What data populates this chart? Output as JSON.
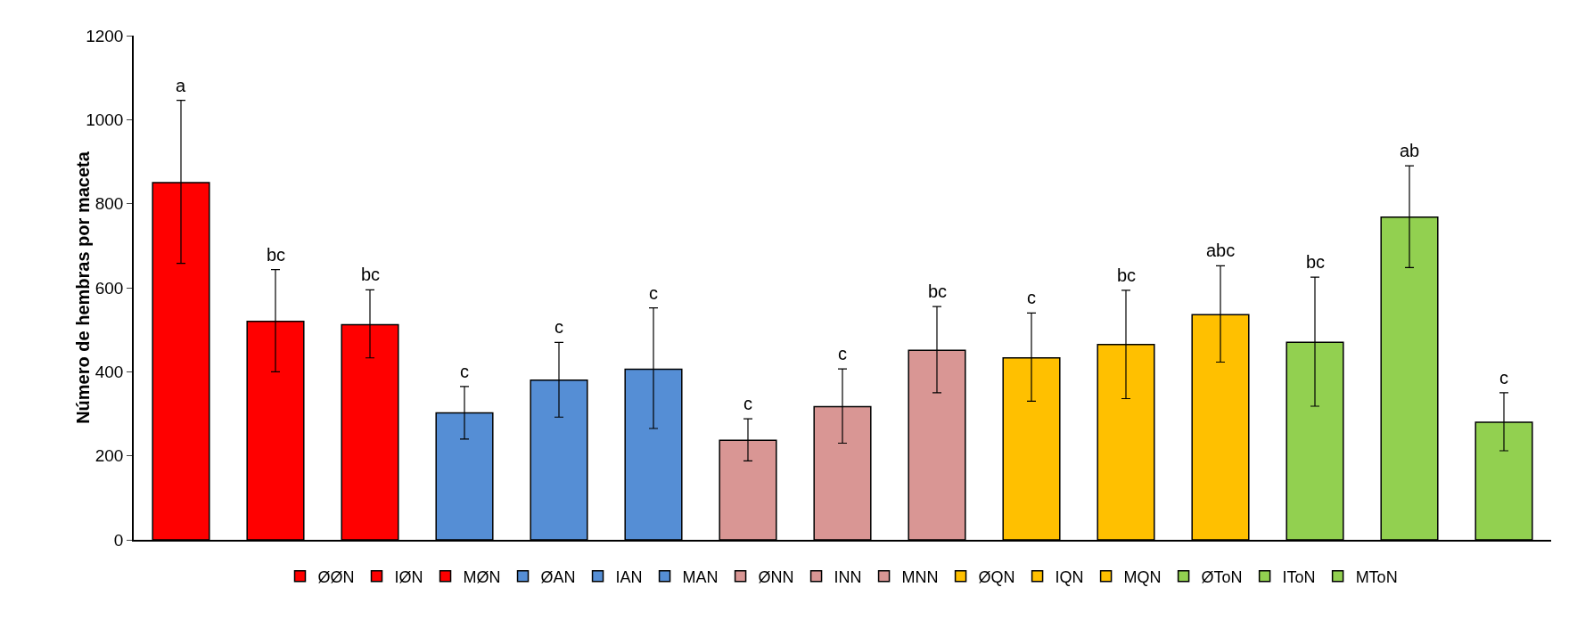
{
  "chart_data": {
    "type": "bar",
    "ylabel": "Número de hembras por maceta",
    "categories": [
      null,
      null,
      null,
      null,
      null,
      null,
      null,
      null,
      null,
      null,
      null,
      null,
      null,
      null,
      null
    ],
    "series": [
      {
        "name": "ØØN",
        "color": "#ff0000",
        "values": [
          850,
          null,
          null,
          null,
          null,
          null,
          null,
          null,
          null,
          null,
          null,
          null,
          null,
          null,
          null
        ],
        "errors": [
          [
            658,
            1046
          ],
          null,
          null,
          null,
          null,
          null,
          null,
          null,
          null,
          null,
          null,
          null,
          null,
          null,
          null
        ]
      },
      {
        "name": "IØN",
        "color": "#ff0000",
        "values": [
          null,
          520,
          null,
          null,
          null,
          null,
          null,
          null,
          null,
          null,
          null,
          null,
          null,
          null,
          null
        ],
        "errors": [
          null,
          [
            400,
            643
          ],
          null,
          null,
          null,
          null,
          null,
          null,
          null,
          null,
          null,
          null,
          null,
          null,
          null
        ]
      },
      {
        "name": "MØN",
        "color": "#ff0000",
        "values": [
          null,
          null,
          512,
          null,
          null,
          null,
          null,
          null,
          null,
          null,
          null,
          null,
          null,
          null,
          null
        ],
        "errors": [
          null,
          null,
          [
            433,
            595
          ],
          null,
          null,
          null,
          null,
          null,
          null,
          null,
          null,
          null,
          null,
          null,
          null
        ]
      },
      {
        "name": "ØAN",
        "color": "#558ed5",
        "values": [
          null,
          null,
          null,
          302,
          null,
          null,
          null,
          null,
          null,
          null,
          null,
          null,
          null,
          null,
          null
        ],
        "errors": [
          null,
          null,
          null,
          [
            240,
            365
          ],
          null,
          null,
          null,
          null,
          null,
          null,
          null,
          null,
          null,
          null,
          null
        ]
      },
      {
        "name": "IAN",
        "color": "#558ed5",
        "values": [
          null,
          null,
          null,
          null,
          380,
          null,
          null,
          null,
          null,
          null,
          null,
          null,
          null,
          null,
          null
        ],
        "errors": [
          null,
          null,
          null,
          null,
          [
            292,
            470
          ],
          null,
          null,
          null,
          null,
          null,
          null,
          null,
          null,
          null,
          null
        ]
      },
      {
        "name": "MAN",
        "color": "#558ed5",
        "values": [
          null,
          null,
          null,
          null,
          null,
          406,
          null,
          null,
          null,
          null,
          null,
          null,
          null,
          null,
          null
        ],
        "errors": [
          null,
          null,
          null,
          null,
          null,
          [
            265,
            552
          ],
          null,
          null,
          null,
          null,
          null,
          null,
          null,
          null,
          null
        ]
      },
      {
        "name": "ØNN",
        "color": "#d99694",
        "values": [
          null,
          null,
          null,
          null,
          null,
          null,
          237,
          null,
          null,
          null,
          null,
          null,
          null,
          null,
          null
        ],
        "errors": [
          null,
          null,
          null,
          null,
          null,
          null,
          [
            188,
            288
          ],
          null,
          null,
          null,
          null,
          null,
          null,
          null,
          null
        ]
      },
      {
        "name": "INN",
        "color": "#d99694",
        "values": [
          null,
          null,
          null,
          null,
          null,
          null,
          null,
          317,
          null,
          null,
          null,
          null,
          null,
          null,
          null
        ],
        "errors": [
          null,
          null,
          null,
          null,
          null,
          null,
          null,
          [
            230,
            407
          ],
          null,
          null,
          null,
          null,
          null,
          null,
          null
        ]
      },
      {
        "name": "MNN",
        "color": "#d99694",
        "values": [
          null,
          null,
          null,
          null,
          null,
          null,
          null,
          null,
          451,
          null,
          null,
          null,
          null,
          null,
          null
        ],
        "errors": [
          null,
          null,
          null,
          null,
          null,
          null,
          null,
          null,
          [
            350,
            555
          ],
          null,
          null,
          null,
          null,
          null,
          null
        ]
      },
      {
        "name": "ØQN",
        "color": "#ffc000",
        "values": [
          null,
          null,
          null,
          null,
          null,
          null,
          null,
          null,
          null,
          433,
          null,
          null,
          null,
          null,
          null
        ],
        "errors": [
          null,
          null,
          null,
          null,
          null,
          null,
          null,
          null,
          null,
          [
            330,
            540
          ],
          null,
          null,
          null,
          null,
          null
        ]
      },
      {
        "name": "IQN",
        "color": "#ffc000",
        "values": [
          null,
          null,
          null,
          null,
          null,
          null,
          null,
          null,
          null,
          null,
          465,
          null,
          null,
          null,
          null
        ],
        "errors": [
          null,
          null,
          null,
          null,
          null,
          null,
          null,
          null,
          null,
          null,
          [
            336,
            594
          ],
          null,
          null,
          null,
          null
        ]
      },
      {
        "name": "MQN",
        "color": "#ffc000",
        "values": [
          null,
          null,
          null,
          null,
          null,
          null,
          null,
          null,
          null,
          null,
          null,
          536,
          null,
          null,
          null
        ],
        "errors": [
          null,
          null,
          null,
          null,
          null,
          null,
          null,
          null,
          null,
          null,
          null,
          [
            423,
            652
          ],
          null,
          null,
          null
        ]
      },
      {
        "name": "ØToN",
        "color": "#92d050",
        "values": [
          null,
          null,
          null,
          null,
          null,
          null,
          null,
          null,
          null,
          null,
          null,
          null,
          470,
          null,
          null
        ],
        "errors": [
          null,
          null,
          null,
          null,
          null,
          null,
          null,
          null,
          null,
          null,
          null,
          null,
          [
            318,
            625
          ],
          null,
          null
        ]
      },
      {
        "name": "IToN",
        "color": "#92d050",
        "values": [
          null,
          null,
          null,
          null,
          null,
          null,
          null,
          null,
          null,
          null,
          null,
          null,
          null,
          768,
          null
        ],
        "errors": [
          null,
          null,
          null,
          null,
          null,
          null,
          null,
          null,
          null,
          null,
          null,
          null,
          null,
          [
            648,
            890
          ],
          null
        ]
      },
      {
        "name": "MToN",
        "color": "#92d050",
        "values": [
          null,
          null,
          null,
          null,
          null,
          null,
          null,
          null,
          null,
          null,
          null,
          null,
          null,
          null,
          280
        ],
        "errors": [
          null,
          null,
          null,
          null,
          null,
          null,
          null,
          null,
          null,
          null,
          null,
          null,
          null,
          null,
          [
            212,
            350
          ]
        ]
      }
    ],
    "annotations": [
      {
        "text": "a",
        "y": 1046
      },
      {
        "text": "bc",
        "y": 643
      },
      {
        "text": "bc",
        "y": 595
      },
      {
        "text": "c",
        "y": 365
      },
      {
        "text": "c",
        "y": 470
      },
      {
        "text": "c",
        "y": 552
      },
      {
        "text": "c",
        "y": 288
      },
      {
        "text": "c",
        "y": 407
      },
      {
        "text": "bc",
        "y": 555
      },
      {
        "text": "c",
        "y": 540
      },
      {
        "text": "bc",
        "y": 594
      },
      {
        "text": "abc",
        "y": 652
      },
      {
        "text": "bc",
        "y": 625
      },
      {
        "text": "ab",
        "y": 890
      },
      {
        "text": "c",
        "y": 350
      }
    ],
    "ylim": [
      0,
      1200
    ],
    "yticks": [
      0,
      200,
      400,
      600,
      800,
      1000,
      1200
    ],
    "grid": false,
    "legend": "bottom",
    "tick_labels": "y"
  }
}
